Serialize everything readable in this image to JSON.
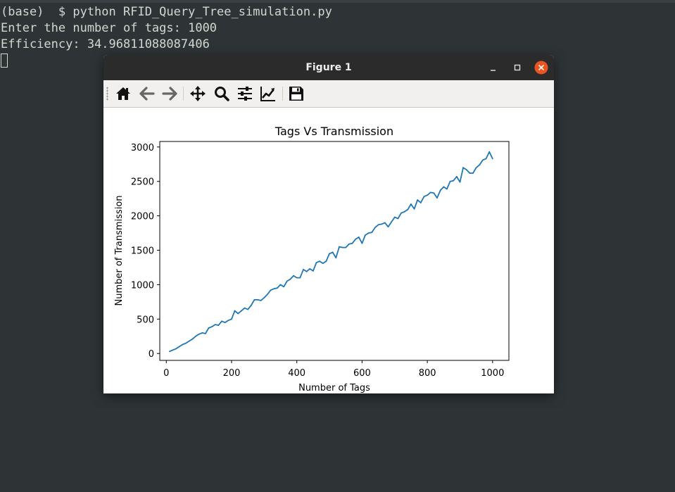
{
  "terminal": {
    "lines": [
      "(base)  $ python RFID_Query_Tree_simulation.py",
      "Enter the number of tags: 1000",
      "Efficiency: 34.96811088087406"
    ]
  },
  "window": {
    "title": "Figure 1",
    "controls": [
      "minimize-icon",
      "maximize-icon",
      "close-icon"
    ],
    "close_color": "#e95420"
  },
  "toolbar": {
    "buttons": [
      "home-icon",
      "back-arrow-icon",
      "forward-arrow-icon",
      "pan-icon",
      "zoom-icon",
      "configure-subplots-icon",
      "edit-axis-icon",
      "save-icon"
    ]
  },
  "chart_data": {
    "type": "line",
    "title": "Tags Vs Transmission",
    "xlabel": "Number of Tags",
    "ylabel": "Number of Transmission",
    "xlim": [
      -20,
      1050
    ],
    "ylim": [
      -100,
      3080
    ],
    "xticks": [
      0,
      200,
      400,
      600,
      800,
      1000
    ],
    "yticks": [
      0,
      500,
      1000,
      1500,
      2000,
      2500,
      3000
    ],
    "grid": false,
    "series": [
      {
        "color": "#1f77b4",
        "x": [
          10,
          20,
          30,
          40,
          50,
          60,
          70,
          80,
          90,
          100,
          110,
          120,
          130,
          140,
          150,
          160,
          170,
          180,
          190,
          200,
          210,
          220,
          230,
          240,
          250,
          260,
          270,
          280,
          290,
          300,
          310,
          320,
          330,
          340,
          350,
          360,
          370,
          380,
          390,
          400,
          410,
          420,
          430,
          440,
          450,
          460,
          470,
          480,
          490,
          500,
          510,
          520,
          530,
          540,
          550,
          560,
          570,
          580,
          590,
          600,
          610,
          620,
          630,
          640,
          650,
          660,
          670,
          680,
          690,
          700,
          710,
          720,
          730,
          740,
          750,
          760,
          770,
          780,
          790,
          800,
          810,
          820,
          830,
          840,
          850,
          860,
          870,
          880,
          890,
          900,
          910,
          920,
          930,
          940,
          950,
          960,
          970,
          980,
          990,
          1000
        ],
        "y": [
          30,
          50,
          70,
          100,
          130,
          150,
          180,
          210,
          250,
          280,
          300,
          290,
          370,
          390,
          420,
          410,
          470,
          450,
          480,
          500,
          620,
          580,
          620,
          660,
          640,
          700,
          780,
          780,
          770,
          810,
          860,
          920,
          940,
          950,
          1000,
          970,
          1050,
          1080,
          1130,
          1100,
          1100,
          1220,
          1190,
          1230,
          1200,
          1320,
          1340,
          1310,
          1340,
          1450,
          1470,
          1390,
          1550,
          1540,
          1540,
          1590,
          1600,
          1660,
          1690,
          1600,
          1720,
          1750,
          1760,
          1830,
          1870,
          1880,
          1900,
          1840,
          1910,
          1980,
          1960,
          2040,
          2060,
          2090,
          2170,
          2100,
          2230,
          2190,
          2280,
          2300,
          2340,
          2330,
          2260,
          2370,
          2420,
          2390,
          2500,
          2510,
          2570,
          2490,
          2700,
          2670,
          2620,
          2620,
          2700,
          2740,
          2810,
          2830,
          2930,
          2830
        ]
      }
    ]
  }
}
